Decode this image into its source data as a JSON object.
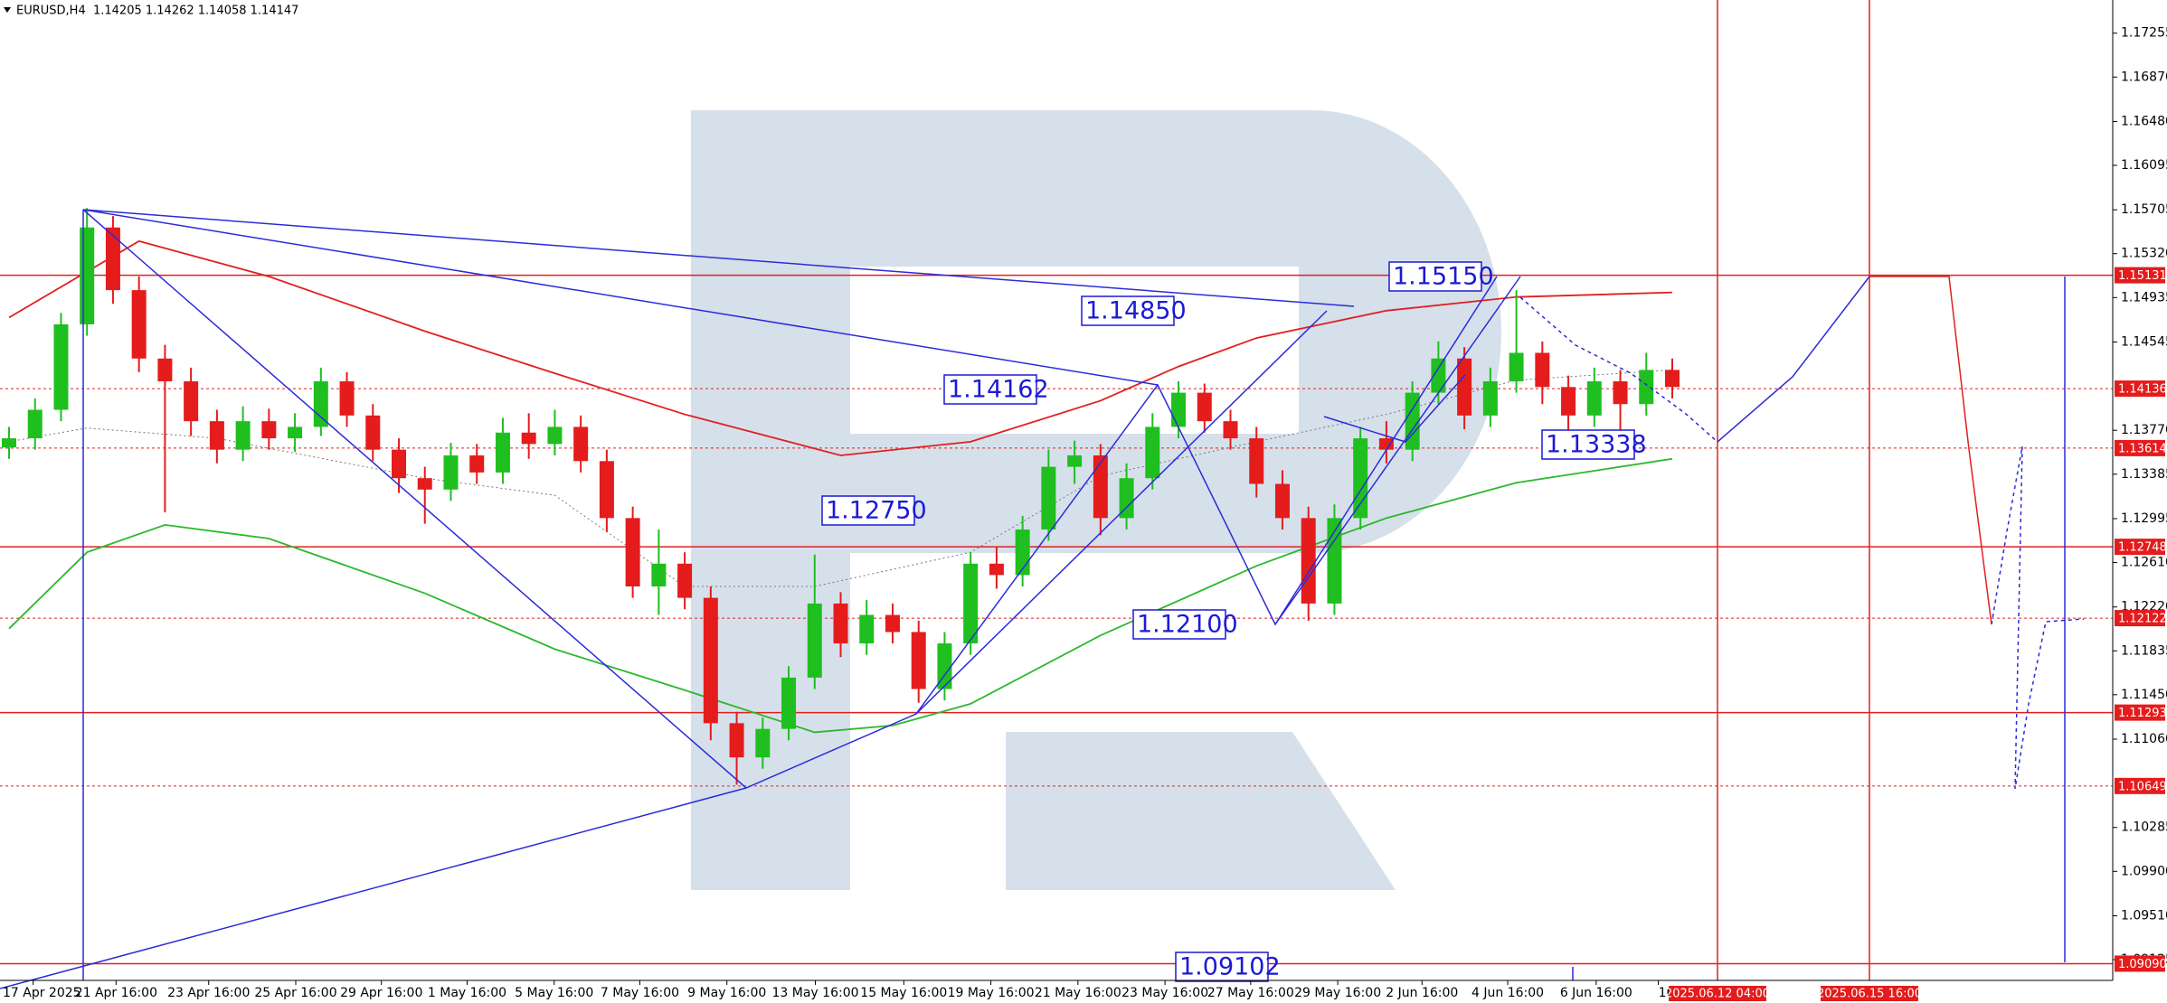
{
  "chart_data": {
    "type": "candlestick",
    "title": "EURUSD,H4  1.14205 1.14262 1.14058 1.14147",
    "up_color": "#1fbf1f",
    "down_color": "#e51c1c",
    "open": [
      1.1362,
      1.137,
      1.1395,
      1.147,
      1.1555,
      1.15,
      1.144,
      1.142,
      1.1385,
      1.136,
      1.1385,
      1.137,
      1.138,
      1.142,
      1.139,
      1.136,
      1.1335,
      1.1325,
      1.1355,
      1.134,
      1.1375,
      1.1365,
      1.138,
      1.135,
      1.13,
      1.124,
      1.126,
      1.123,
      1.112,
      1.109,
      1.1115,
      1.116,
      1.1225,
      1.119,
      1.1215,
      1.12,
      1.115,
      1.119,
      1.126,
      1.125,
      1.129,
      1.1345,
      1.1355,
      1.13,
      1.1335,
      1.138,
      1.141,
      1.1385,
      1.137,
      1.133,
      1.13,
      1.1225,
      1.13,
      1.137,
      1.136,
      1.141,
      1.144,
      1.139,
      1.142,
      1.1445,
      1.1415,
      1.139,
      1.142,
      1.14,
      1.143
    ],
    "high": [
      1.138,
      1.1405,
      1.148,
      1.1572,
      1.1565,
      1.1512,
      1.1452,
      1.1432,
      1.1395,
      1.1398,
      1.1396,
      1.1392,
      1.1432,
      1.1428,
      1.14,
      1.137,
      1.1345,
      1.1366,
      1.1365,
      1.1388,
      1.1392,
      1.1395,
      1.139,
      1.136,
      1.131,
      1.129,
      1.127,
      1.124,
      1.113,
      1.1125,
      1.117,
      1.1268,
      1.1235,
      1.1228,
      1.1225,
      1.121,
      1.12,
      1.127,
      1.1275,
      1.1302,
      1.136,
      1.1368,
      1.1365,
      1.1348,
      1.1392,
      1.142,
      1.1418,
      1.1395,
      1.138,
      1.1342,
      1.131,
      1.1312,
      1.138,
      1.1385,
      1.142,
      1.1455,
      1.145,
      1.1432,
      1.15,
      1.1455,
      1.1425,
      1.1432,
      1.143,
      1.1445,
      1.144
    ],
    "low": [
      1.1352,
      1.136,
      1.1385,
      1.146,
      1.1488,
      1.1428,
      1.1305,
      1.1372,
      1.1348,
      1.135,
      1.136,
      1.1358,
      1.1372,
      1.138,
      1.135,
      1.1322,
      1.1295,
      1.1315,
      1.133,
      1.133,
      1.1352,
      1.1355,
      1.134,
      1.1288,
      1.123,
      1.1215,
      1.122,
      1.1105,
      1.1066,
      1.108,
      1.1105,
      1.115,
      1.1178,
      1.118,
      1.119,
      1.1138,
      1.114,
      1.118,
      1.1238,
      1.124,
      1.128,
      1.133,
      1.1285,
      1.129,
      1.1325,
      1.137,
      1.1375,
      1.136,
      1.1318,
      1.129,
      1.121,
      1.1215,
      1.129,
      1.1348,
      1.135,
      1.14,
      1.1378,
      1.138,
      1.141,
      1.14,
      1.1375,
      1.138,
      1.1372,
      1.139,
      1.1405
    ],
    "close": [
      1.137,
      1.1395,
      1.147,
      1.1555,
      1.15,
      1.144,
      1.142,
      1.1385,
      1.136,
      1.1385,
      1.137,
      1.138,
      1.142,
      1.139,
      1.136,
      1.1335,
      1.1325,
      1.1355,
      1.134,
      1.1375,
      1.1365,
      1.138,
      1.135,
      1.13,
      1.124,
      1.126,
      1.123,
      1.112,
      1.109,
      1.1115,
      1.116,
      1.1225,
      1.119,
      1.1215,
      1.12,
      1.115,
      1.119,
      1.126,
      1.125,
      1.129,
      1.1345,
      1.1355,
      1.13,
      1.1335,
      1.138,
      1.141,
      1.1385,
      1.137,
      1.133,
      1.13,
      1.1225,
      1.13,
      1.137,
      1.136,
      1.141,
      1.144,
      1.139,
      1.142,
      1.1445,
      1.1415,
      1.139,
      1.142,
      1.14,
      1.143,
      1.1415
    ],
    "series": [
      {
        "color": "#e02020",
        "dashed": false,
        "x": [
          0,
          5,
          10,
          16,
          21,
          26,
          32,
          37,
          42,
          45,
          48,
          53,
          58,
          64
        ],
        "values": [
          1.1476,
          1.1543,
          1.1512,
          1.1464,
          1.1427,
          1.1391,
          1.1355,
          1.1367,
          1.1403,
          1.1433,
          1.1458,
          1.1482,
          1.1494,
          1.1498
        ]
      },
      {
        "color": "#2cb82c",
        "dashed": false,
        "x": [
          0,
          3,
          6,
          10,
          16,
          21,
          26,
          31,
          34,
          37,
          42,
          48,
          53,
          58,
          64
        ],
        "values": [
          1.1203,
          1.127,
          1.1294,
          1.1282,
          1.1234,
          1.1185,
          1.1149,
          1.1112,
          1.1118,
          1.1137,
          1.1197,
          1.1258,
          1.13,
          1.1331,
          1.1352
        ]
      },
      {
        "color": "#777777",
        "dashed": true,
        "x": [
          0,
          3,
          8,
          16,
          21,
          26,
          31,
          37,
          42,
          48,
          53,
          58,
          64
        ],
        "values": [
          1.1367,
          1.1379,
          1.137,
          1.1335,
          1.132,
          1.124,
          1.124,
          1.127,
          1.1337,
          1.1367,
          1.1391,
          1.1421,
          1.143
        ]
      }
    ],
    "ylim": [
      1.08943,
      1.17546
    ],
    "yticks": [
      1.17255,
      {
        "value": 1.1687,
        "label": "1.16870"
      },
      {
        "value": 1.1648,
        "label": "1.16480"
      },
      1.16095,
      1.15705,
      {
        "value": 1.1532,
        "label": "1.15320"
      },
      1.14935,
      1.14545,
      {
        "value": 1.1377,
        "label": "1.13770"
      },
      1.13385,
      1.12995,
      {
        "value": 1.1261,
        "label": "1.12610"
      },
      {
        "value": 1.1222,
        "label": "1.12220"
      },
      1.11835,
      {
        "value": 1.1145,
        "label": "1.11450"
      },
      {
        "value": 1.1106,
        "label": "1.11060"
      },
      1.10285,
      {
        "value": 1.099,
        "label": "1.09900"
      },
      {
        "value": 1.0951,
        "label": "1.09510"
      },
      1.09125
    ],
    "levels": [
      {
        "value": 1.15131,
        "dashed": false
      },
      {
        "value": 1.14136,
        "dashed": true
      },
      {
        "value": 1.13614,
        "dashed": true
      },
      {
        "value": 1.12748,
        "dashed": false
      },
      {
        "value": 1.12122,
        "dashed": true
      },
      {
        "value": 1.11293,
        "dashed": false
      },
      {
        "value": 1.10649,
        "dashed": true
      },
      {
        "value": 1.0909,
        "label": "1.09090",
        "dashed": false
      }
    ],
    "annotations": [
      "1.15150",
      "1.14850",
      "1.14162",
      "1.12750",
      "1.13338",
      "1.12100",
      "1.09102"
    ],
    "time_labels": [
      "17 Apr 2025",
      "21 Apr 16:00",
      "23 Apr 16:00",
      "25 Apr 16:00",
      "29 Apr 16:00",
      "1 May 16:00",
      "5 May 16:00",
      "7 May 16:00",
      "9 May 16:00",
      "13 May 16:00",
      "15 May 16:00",
      "19 May 16:00",
      "21 May 16:00",
      "23 May 16:00",
      "27 May 16:00",
      "29 May 16:00",
      "2 Jun 16:00",
      "4 Jun 16:00",
      "6 Jun 16:00",
      "10"
    ],
    "time_markers": [
      "2025.06.12 04:00",
      "2025.06.15 16:00"
    ]
  }
}
